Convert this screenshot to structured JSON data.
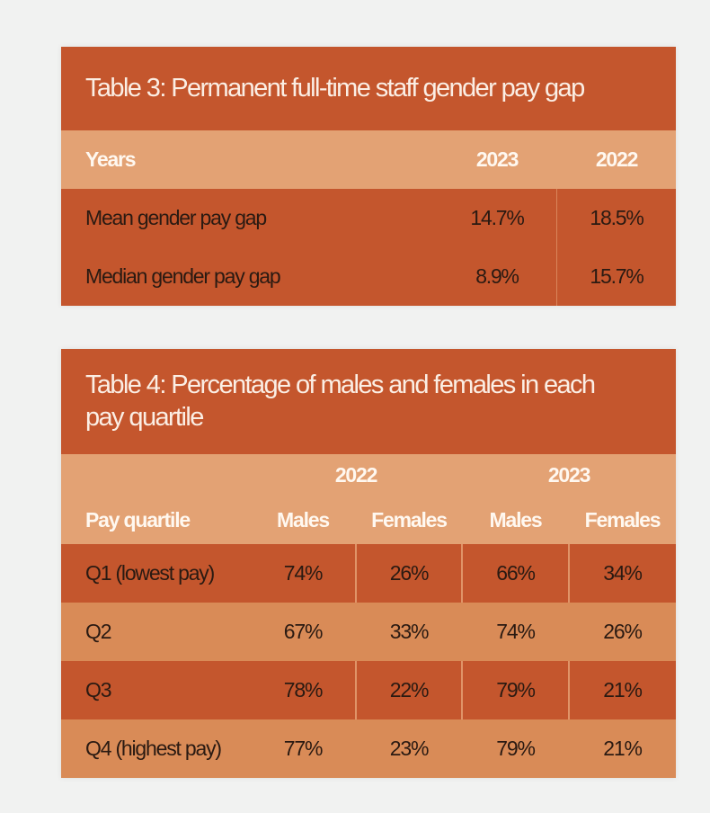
{
  "table3": {
    "title": "Table 3: Permanent full-time staff gender pay gap",
    "headers": [
      "Years",
      "2023",
      "2022"
    ],
    "rows": [
      {
        "label": "Mean gender pay gap",
        "values": [
          "14.7%",
          "18.5%"
        ]
      },
      {
        "label": "Median gender pay gap",
        "values": [
          "8.9%",
          "15.7%"
        ]
      }
    ]
  },
  "table4": {
    "title_line1": "Table 4: Percentage of males and females in each",
    "title_line2": "pay quartile",
    "years": [
      "2022",
      "2023"
    ],
    "headers": [
      "Pay quartile",
      "Males",
      "Females",
      "Males",
      "Females"
    ],
    "rows": [
      {
        "label": "Q1 (lowest pay)",
        "values": [
          "74%",
          "26%",
          "66%",
          "34%"
        ]
      },
      {
        "label": "Q2",
        "values": [
          "67%",
          "33%",
          "74%",
          "26%"
        ]
      },
      {
        "label": "Q3",
        "values": [
          "78%",
          "22%",
          "79%",
          "21%"
        ]
      },
      {
        "label": "Q4 (highest pay)",
        "values": [
          "77%",
          "23%",
          "79%",
          "21%"
        ]
      }
    ]
  },
  "colors": {
    "dark": "#c4562d",
    "header": "#e3a274",
    "light_row": "#d98b57",
    "background": "#f1f2f1"
  }
}
